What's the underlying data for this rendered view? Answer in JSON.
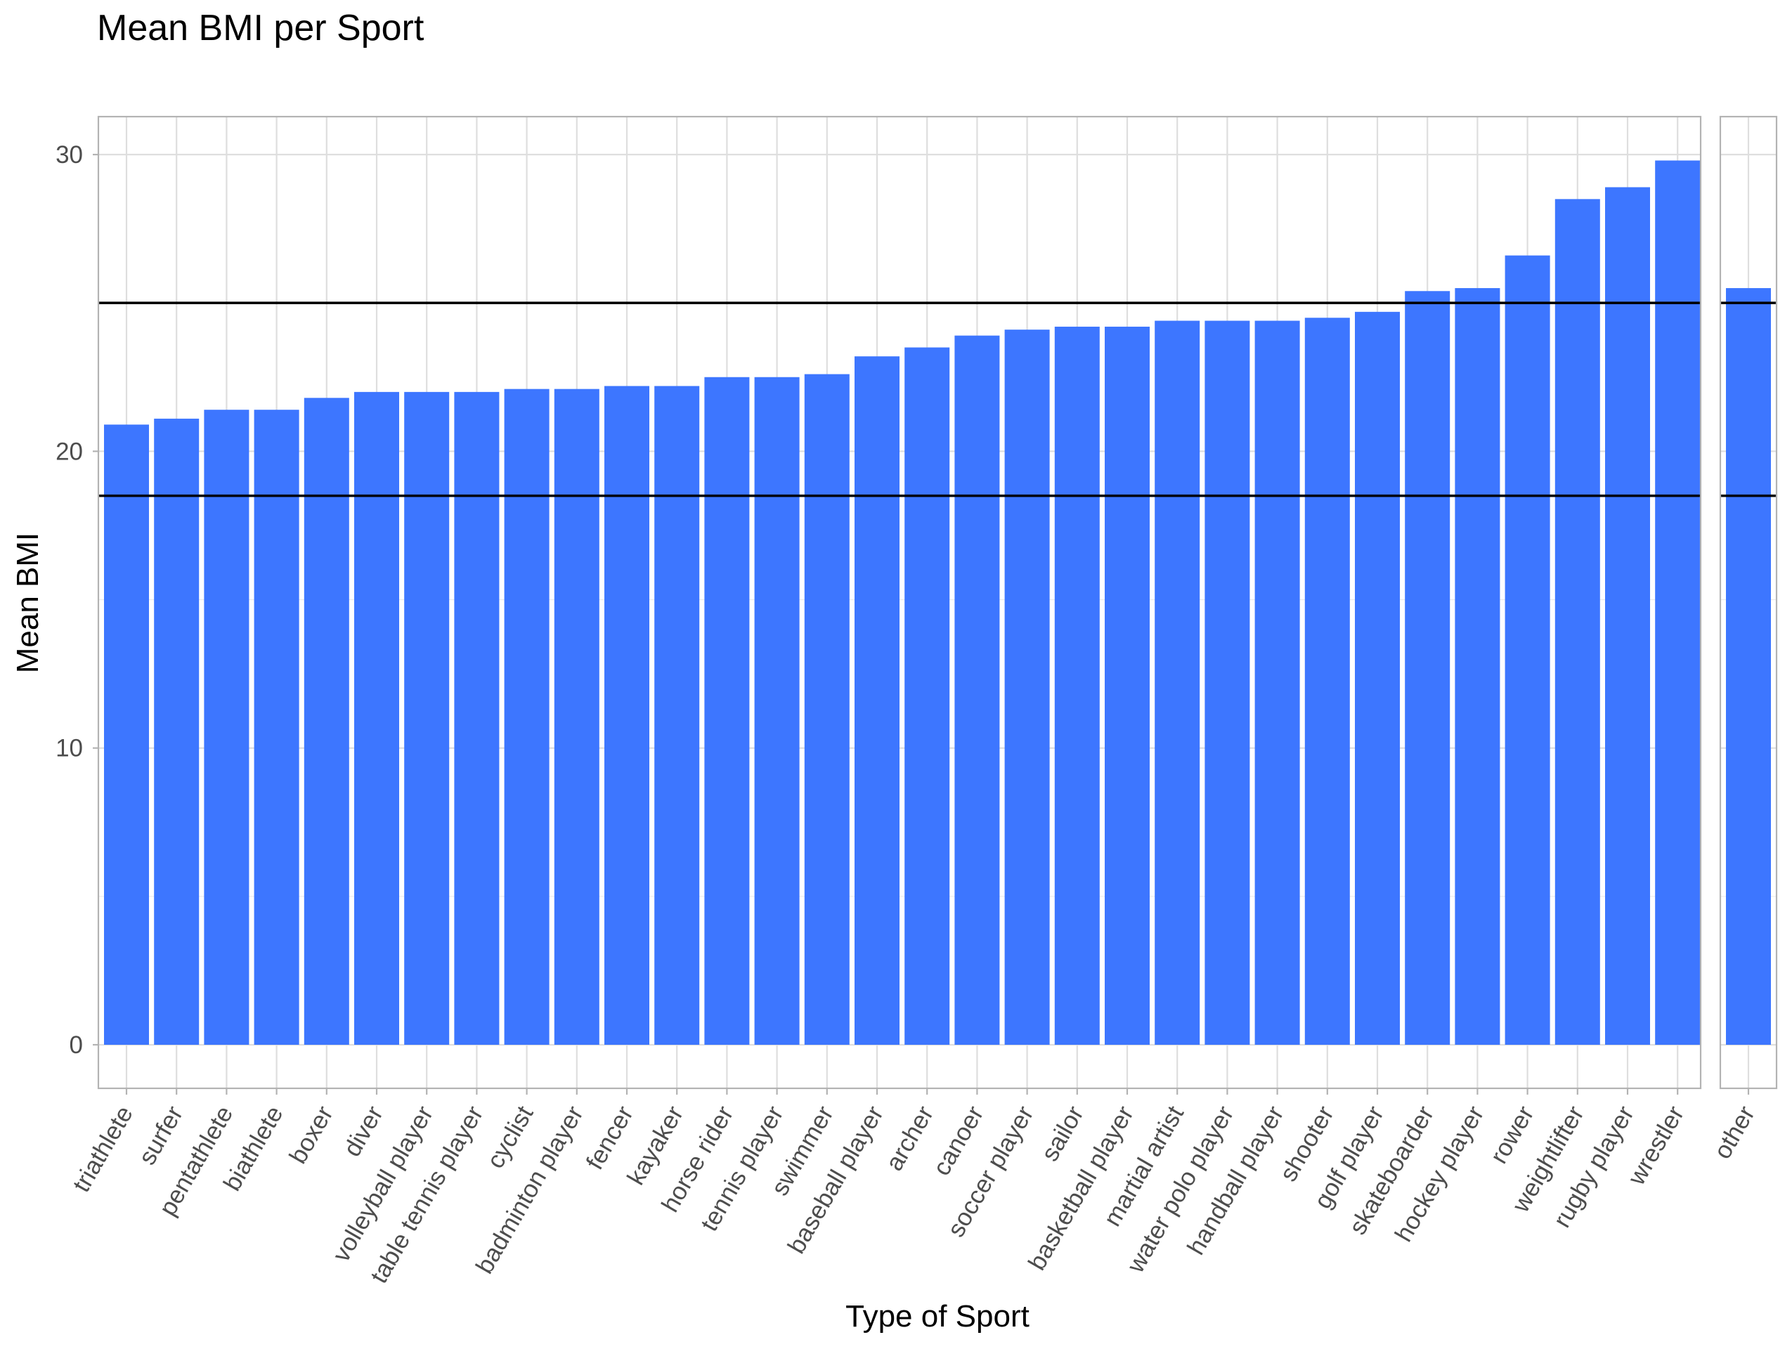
{
  "chart_data": {
    "type": "bar",
    "title": "Mean BMI per Sport",
    "xlabel": "Type of Sport",
    "ylabel": "Mean BMI",
    "ylim": [
      0,
      30
    ],
    "yticks": [
      0,
      10,
      20,
      30
    ],
    "bar_color": "#3d76ff",
    "reference_lines": [
      18.5,
      25
    ],
    "grid": true,
    "legend": "none",
    "panels": [
      {
        "categories": [
          "triathlete",
          "surfer",
          "pentathlete",
          "biathlete",
          "boxer",
          "diver",
          "volleyball player",
          "table tennis player",
          "cyclist",
          "badminton player",
          "fencer",
          "kayaker",
          "horse rider",
          "tennis player",
          "swimmer",
          "baseball player",
          "archer",
          "canoer",
          "soccer player",
          "sailor",
          "basketball player",
          "martial artist",
          "water polo player",
          "handball player",
          "shooter",
          "golf player",
          "skateboarder",
          "hockey player",
          "rower",
          "weightlifter",
          "rugby player",
          "wrestler"
        ],
        "values": [
          20.9,
          21.1,
          21.4,
          21.4,
          21.8,
          22.0,
          22.0,
          22.0,
          22.1,
          22.1,
          22.2,
          22.2,
          22.5,
          22.5,
          22.6,
          23.2,
          23.5,
          23.9,
          24.1,
          24.2,
          24.2,
          24.4,
          24.4,
          24.4,
          24.5,
          24.7,
          25.4,
          25.5,
          26.6,
          28.5,
          28.9,
          29.8
        ]
      },
      {
        "categories": [
          "other"
        ],
        "values": [
          25.5
        ]
      }
    ]
  }
}
